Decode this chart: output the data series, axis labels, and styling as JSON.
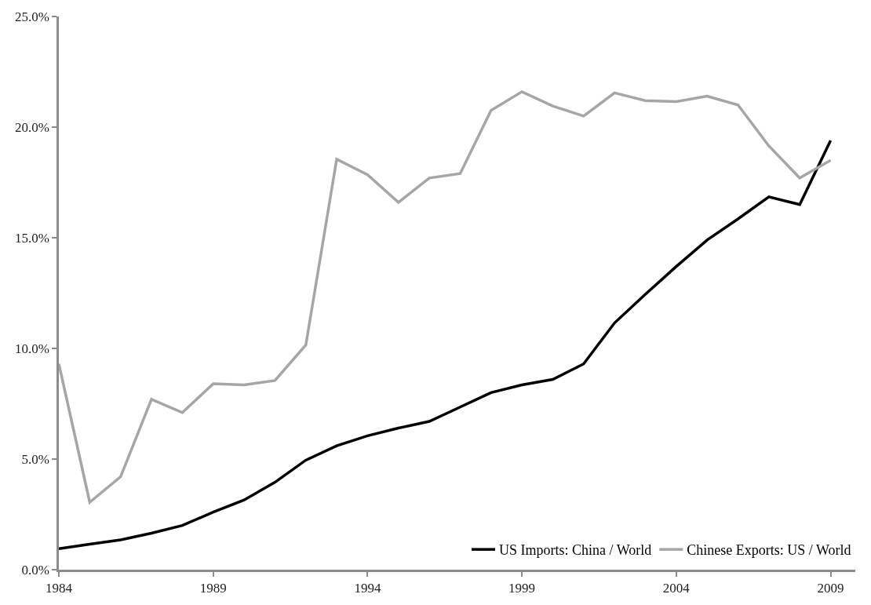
{
  "chart_data": {
    "type": "line",
    "x": [
      1984,
      1985,
      1986,
      1987,
      1988,
      1989,
      1990,
      1991,
      1992,
      1993,
      1994,
      1995,
      1996,
      1997,
      1998,
      1999,
      2000,
      2001,
      2002,
      2003,
      2004,
      2005,
      2006,
      2007,
      2008,
      2009
    ],
    "series": [
      {
        "name": "US Imports: China / World",
        "color": "#000000",
        "values": [
          0.95,
          1.15,
          1.35,
          1.65,
          2.0,
          2.6,
          3.15,
          3.95,
          4.95,
          5.6,
          6.05,
          6.4,
          6.7,
          7.35,
          8.0,
          8.35,
          8.6,
          9.3,
          11.15,
          12.45,
          13.7,
          14.9,
          15.85,
          16.85,
          16.5,
          19.4
        ]
      },
      {
        "name": "Chinese Exports: US / World",
        "color": "#a6a6a6",
        "values": [
          9.3,
          3.05,
          4.2,
          7.7,
          7.1,
          8.4,
          8.35,
          8.55,
          10.15,
          18.55,
          17.85,
          16.6,
          17.7,
          17.9,
          20.75,
          21.6,
          20.95,
          20.5,
          21.55,
          21.2,
          21.15,
          21.4,
          21.0,
          19.15,
          17.7,
          18.5
        ]
      }
    ],
    "xlim": [
      1984,
      2009.8
    ],
    "xticks": [
      1984,
      1989,
      1994,
      1999,
      2004,
      2009
    ],
    "ylim": [
      0,
      25
    ],
    "yticks": [
      {
        "value": 0,
        "label": "0.0%"
      },
      {
        "value": 5,
        "label": "5.0%"
      },
      {
        "value": 10,
        "label": "10.0%"
      },
      {
        "value": 15,
        "label": "15.0%"
      },
      {
        "value": 20,
        "label": "20.0%"
      },
      {
        "value": 25,
        "label": "25.0%"
      }
    ],
    "legend": "bottom right",
    "marker": "none",
    "line_style": "solid"
  }
}
